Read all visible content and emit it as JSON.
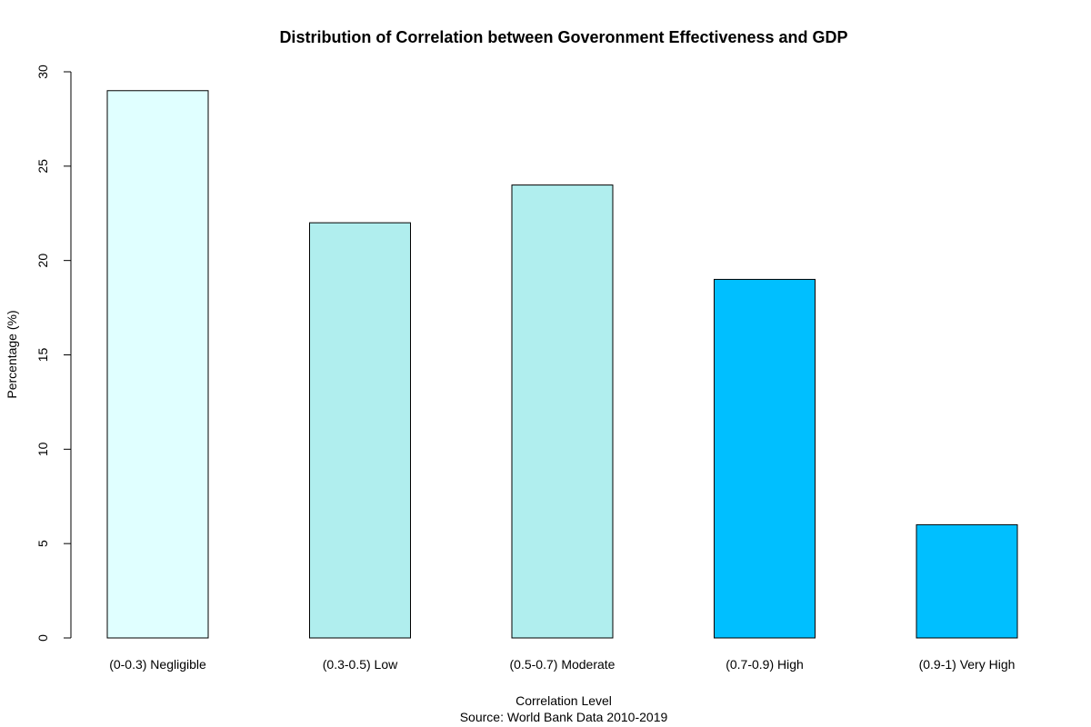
{
  "chart_data": {
    "type": "bar",
    "title": "Distribution of Correlation between Goveronment Effectiveness and GDP",
    "xlabel": "Correlation Level",
    "source": "Source: World Bank Data 2010-2019",
    "ylabel": "Percentage (%)",
    "categories": [
      "(0-0.3) Negligible",
      "(0.3-0.5) Low",
      "(0.5-0.7) Moderate",
      "(0.7-0.9) High",
      "(0.9-1) Very High"
    ],
    "values": [
      29,
      22,
      24,
      19,
      6
    ],
    "colors": [
      "#e0ffff",
      "#b0eeee",
      "#b0eeee",
      "#00bfff",
      "#00bfff"
    ],
    "ylim": [
      0,
      30
    ],
    "yticks": [
      0,
      5,
      10,
      15,
      20,
      25,
      30
    ],
    "grid": false,
    "legend": "none"
  }
}
